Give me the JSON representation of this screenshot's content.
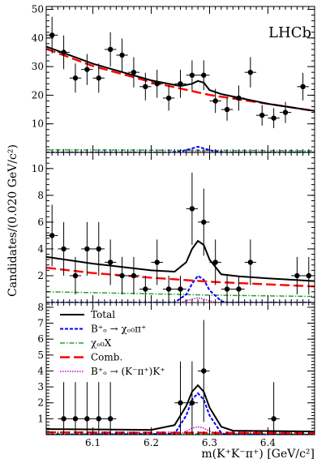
{
  "chart_data": {
    "type": "scatter",
    "experiment_label": "LHCb",
    "xlabel": "m(K⁺K⁻π⁺) [GeV/c²]",
    "ylabel": "Candidates/(0.020 GeV/c²)",
    "xlim": [
      6.02,
      6.48
    ],
    "x_ticks": [
      "6.1",
      "6.2",
      "6.3",
      "6.4"
    ],
    "legend": [
      {
        "key": "total",
        "label": "Total",
        "color": "#000000",
        "style": "solid"
      },
      {
        "key": "signal",
        "label": "B⁺ₒ → χₒ₀π⁺",
        "color": "#0000ff",
        "style": "dashed"
      },
      {
        "key": "chic0x",
        "label": "χₒ₀X",
        "color": "#2ca02c",
        "style": "dashdot"
      },
      {
        "key": "comb",
        "label": "Comb.",
        "color": "#ff0000",
        "style": "longdash"
      },
      {
        "key": "peaking",
        "label": "B⁺ₒ → (K⁻π⁺)K⁺",
        "color": "#cc00cc",
        "style": "dotted"
      }
    ],
    "panels": [
      {
        "ylim": [
          0,
          51
        ],
        "y_ticks": [
          10,
          20,
          30,
          40,
          50
        ],
        "points": [
          {
            "x": 6.03,
            "y": 41,
            "err": 6.4
          },
          {
            "x": 6.05,
            "y": 35,
            "err": 5.9
          },
          {
            "x": 6.07,
            "y": 26,
            "err": 5.1
          },
          {
            "x": 6.09,
            "y": 29,
            "err": 5.4
          },
          {
            "x": 6.11,
            "y": 26,
            "err": 5.1
          },
          {
            "x": 6.13,
            "y": 36,
            "err": 6.0
          },
          {
            "x": 6.15,
            "y": 34,
            "err": 5.8
          },
          {
            "x": 6.17,
            "y": 28,
            "err": 5.3
          },
          {
            "x": 6.19,
            "y": 23,
            "err": 4.8
          },
          {
            "x": 6.21,
            "y": 24,
            "err": 4.9
          },
          {
            "x": 6.23,
            "y": 19,
            "err": 4.4
          },
          {
            "x": 6.25,
            "y": 24,
            "err": 4.9
          },
          {
            "x": 6.27,
            "y": 27,
            "err": 5.2
          },
          {
            "x": 6.29,
            "y": 27,
            "err": 5.2
          },
          {
            "x": 6.31,
            "y": 18,
            "err": 4.2
          },
          {
            "x": 6.33,
            "y": 15,
            "err": 3.9
          },
          {
            "x": 6.35,
            "y": 19,
            "err": 4.4
          },
          {
            "x": 6.37,
            "y": 28,
            "err": 5.3
          },
          {
            "x": 6.39,
            "y": 13,
            "err": 3.6
          },
          {
            "x": 6.41,
            "y": 12,
            "err": 3.5
          },
          {
            "x": 6.43,
            "y": 14,
            "err": 3.7
          },
          {
            "x": 6.46,
            "y": 23,
            "err": 4.8
          }
        ],
        "curves": {
          "total": [
            [
              6.02,
              37
            ],
            [
              6.1,
              31
            ],
            [
              6.2,
              25.2
            ],
            [
              6.25,
              23.2
            ],
            [
              6.27,
              24
            ],
            [
              6.28,
              25
            ],
            [
              6.29,
              24.4
            ],
            [
              6.3,
              21.8
            ],
            [
              6.32,
              20.4
            ],
            [
              6.4,
              17
            ],
            [
              6.48,
              14.5
            ]
          ],
          "comb": [
            [
              6.02,
              36.2
            ],
            [
              6.1,
              30.2
            ],
            [
              6.2,
              24.6
            ],
            [
              6.3,
              20.1
            ],
            [
              6.4,
              17
            ],
            [
              6.48,
              14.5
            ]
          ],
          "signal": [
            [
              6.02,
              0
            ],
            [
              6.23,
              0
            ],
            [
              6.25,
              0.3
            ],
            [
              6.27,
              1.4
            ],
            [
              6.28,
              2
            ],
            [
              6.29,
              1.4
            ],
            [
              6.31,
              0.3
            ],
            [
              6.33,
              0
            ],
            [
              6.48,
              0
            ]
          ],
          "chic0x": [
            [
              6.02,
              0.9
            ],
            [
              6.48,
              0.6
            ]
          ],
          "peaking": [
            [
              6.02,
              0
            ],
            [
              6.25,
              0
            ],
            [
              6.27,
              0.2
            ],
            [
              6.28,
              0.3
            ],
            [
              6.29,
              0.2
            ],
            [
              6.31,
              0
            ],
            [
              6.48,
              0
            ]
          ]
        }
      },
      {
        "ylim": [
          0,
          11.2
        ],
        "y_ticks": [
          2,
          4,
          6,
          8,
          10
        ],
        "points": [
          {
            "x": 6.03,
            "y": 5,
            "err": 2.3
          },
          {
            "x": 6.05,
            "y": 4,
            "err": 2.0
          },
          {
            "x": 6.07,
            "y": 2,
            "err": 1.4
          },
          {
            "x": 6.09,
            "y": 4,
            "err": 2.0
          },
          {
            "x": 6.11,
            "y": 4,
            "err": 2.0
          },
          {
            "x": 6.13,
            "y": 3,
            "err": 1.7
          },
          {
            "x": 6.15,
            "y": 2,
            "err": 1.4
          },
          {
            "x": 6.17,
            "y": 2,
            "err": 1.4
          },
          {
            "x": 6.19,
            "y": 1,
            "err": 1.0
          },
          {
            "x": 6.21,
            "y": 3,
            "err": 1.7
          },
          {
            "x": 6.23,
            "y": 1,
            "err": 1.0
          },
          {
            "x": 6.25,
            "y": 1,
            "err": 1.0
          },
          {
            "x": 6.27,
            "y": 7,
            "err": 2.7
          },
          {
            "x": 6.29,
            "y": 6,
            "err": 2.5
          },
          {
            "x": 6.31,
            "y": 3,
            "err": 1.7
          },
          {
            "x": 6.33,
            "y": 1,
            "err": 1.0
          },
          {
            "x": 6.35,
            "y": 1,
            "err": 1.0
          },
          {
            "x": 6.37,
            "y": 3,
            "err": 1.7
          },
          {
            "x": 6.45,
            "y": 2,
            "err": 1.4
          },
          {
            "x": 6.47,
            "y": 2,
            "err": 1.4
          }
        ],
        "curves": {
          "total": [
            [
              6.02,
              3.4
            ],
            [
              6.1,
              2.9
            ],
            [
              6.2,
              2.4
            ],
            [
              6.24,
              2.3
            ],
            [
              6.26,
              3
            ],
            [
              6.27,
              4
            ],
            [
              6.28,
              4.6
            ],
            [
              6.29,
              4.3
            ],
            [
              6.3,
              3.2
            ],
            [
              6.32,
              2.1
            ],
            [
              6.35,
              1.95
            ],
            [
              6.4,
              1.8
            ],
            [
              6.48,
              1.6
            ]
          ],
          "comb": [
            [
              6.02,
              2.6
            ],
            [
              6.1,
              2.2
            ],
            [
              6.2,
              1.85
            ],
            [
              6.3,
              1.55
            ],
            [
              6.4,
              1.35
            ],
            [
              6.48,
              1.2
            ]
          ],
          "signal": [
            [
              6.02,
              0
            ],
            [
              6.24,
              0
            ],
            [
              6.26,
              0.6
            ],
            [
              6.27,
              1.4
            ],
            [
              6.28,
              2
            ],
            [
              6.29,
              1.7
            ],
            [
              6.3,
              0.9
            ],
            [
              6.32,
              0.1
            ],
            [
              6.33,
              0
            ],
            [
              6.48,
              0
            ]
          ],
          "chic0x": [
            [
              6.02,
              0.8
            ],
            [
              6.2,
              0.65
            ],
            [
              6.3,
              0.55
            ],
            [
              6.48,
              0.45
            ]
          ],
          "peaking": [
            [
              6.02,
              0
            ],
            [
              6.25,
              0
            ],
            [
              6.27,
              0.25
            ],
            [
              6.28,
              0.35
            ],
            [
              6.29,
              0.25
            ],
            [
              6.31,
              0
            ],
            [
              6.48,
              0
            ]
          ]
        }
      },
      {
        "ylim": [
          0,
          8.3
        ],
        "y_ticks": [
          1,
          2,
          3,
          4,
          5,
          6,
          7,
          8
        ],
        "points": [
          {
            "x": 6.05,
            "y": 1,
            "err": 2.3
          },
          {
            "x": 6.07,
            "y": 1,
            "err": 2.3
          },
          {
            "x": 6.09,
            "y": 1,
            "err": 2.3
          },
          {
            "x": 6.11,
            "y": 1,
            "err": 2.3
          },
          {
            "x": 6.13,
            "y": 1,
            "err": 2.3
          },
          {
            "x": 6.25,
            "y": 2,
            "err": 2.6
          },
          {
            "x": 6.27,
            "y": 2,
            "err": 2.6
          },
          {
            "x": 6.29,
            "y": 4,
            "err": 3.2
          },
          {
            "x": 6.41,
            "y": 1,
            "err": 2.3
          }
        ],
        "curves": {
          "total": [
            [
              6.02,
              0.35
            ],
            [
              6.2,
              0.3
            ],
            [
              6.24,
              0.6
            ],
            [
              6.26,
              1.8
            ],
            [
              6.27,
              2.7
            ],
            [
              6.28,
              3.1
            ],
            [
              6.29,
              2.7
            ],
            [
              6.3,
              1.7
            ],
            [
              6.32,
              0.5
            ],
            [
              6.34,
              0.25
            ],
            [
              6.48,
              0.2
            ]
          ],
          "signal": [
            [
              6.02,
              0
            ],
            [
              6.24,
              0.05
            ],
            [
              6.26,
              1.2
            ],
            [
              6.27,
              2.2
            ],
            [
              6.28,
              2.6
            ],
            [
              6.29,
              2.2
            ],
            [
              6.3,
              1.2
            ],
            [
              6.32,
              0.1
            ],
            [
              6.33,
              0
            ],
            [
              6.48,
              0
            ]
          ],
          "comb": [
            [
              6.02,
              0.15
            ],
            [
              6.48,
              0.1
            ]
          ],
          "chic0x": [
            [
              6.02,
              0.05
            ],
            [
              6.48,
              0.05
            ]
          ],
          "peaking": [
            [
              6.02,
              0
            ],
            [
              6.25,
              0.05
            ],
            [
              6.27,
              0.4
            ],
            [
              6.28,
              0.5
            ],
            [
              6.29,
              0.4
            ],
            [
              6.31,
              0.05
            ],
            [
              6.48,
              0
            ]
          ]
        }
      }
    ]
  }
}
